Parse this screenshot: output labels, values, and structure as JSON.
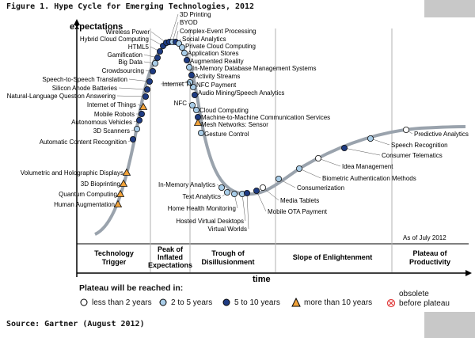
{
  "figure_title": "Figure 1. Hype Cycle for Emerging Technologies, 2012",
  "source": "Source: Gartner (August 2012)",
  "axis": {
    "y_label": "expectations",
    "x_label": "time"
  },
  "as_of": "As of July 2012",
  "phases": [
    "Technology Trigger",
    "Peak of Inflated Expectations",
    "Trough of Disillusionment",
    "Slope of Enlightenment",
    "Plateau of Productivity"
  ],
  "legend": {
    "title": "Plateau will be reached in:",
    "items": [
      {
        "key": "lt2",
        "label": "less than 2 years"
      },
      {
        "key": "2to5",
        "label": "2 to 5 years"
      },
      {
        "key": "5to10",
        "label": "5 to 10 years"
      },
      {
        "key": "gt10",
        "label": "more than 10 years"
      }
    ],
    "obsolete": [
      "obsolete",
      "before plateau"
    ]
  },
  "colors": {
    "curve": "#9aa3ad",
    "lt2": "#ffffff",
    "2to5": "#a9cde8",
    "5to10": "#1e3b82",
    "gt10": "#f2a33a",
    "obsolete": "#e03b3b",
    "grid_line": "#b0b0b0"
  },
  "technologies": [
    {
      "name": "Volumetric and Holographic Displays",
      "category": "gt10"
    },
    {
      "name": "3D Bioprinting",
      "category": "gt10"
    },
    {
      "name": "Quantum Computing",
      "category": "gt10"
    },
    {
      "name": "Human Augmentation",
      "category": "gt10"
    },
    {
      "name": "Automatic Content Recognition",
      "category": "5to10"
    },
    {
      "name": "3D Scanners",
      "category": "2to5"
    },
    {
      "name": "Autonomous Vehicles",
      "category": "5to10"
    },
    {
      "name": "Mobile Robots",
      "category": "5to10"
    },
    {
      "name": "Internet of Things",
      "category": "gt10"
    },
    {
      "name": "Natural-Language Question Answering",
      "category": "5to10"
    },
    {
      "name": "Silicon Anode Batteries",
      "category": "5to10"
    },
    {
      "name": "Speech-to-Speech Translation",
      "category": "5to10"
    },
    {
      "name": "Crowdsourcing",
      "category": "5to10"
    },
    {
      "name": "Big Data",
      "category": "2to5"
    },
    {
      "name": "Gamification",
      "category": "5to10"
    },
    {
      "name": "HTML5",
      "category": "5to10"
    },
    {
      "name": "Hybrid Cloud Computing",
      "category": "5to10"
    },
    {
      "name": "Wireless Power",
      "category": "5to10"
    },
    {
      "name": "3D Printing",
      "category": "5to10"
    },
    {
      "name": "BYOD",
      "category": "2to5"
    },
    {
      "name": "Complex-Event Processing",
      "category": "5to10"
    },
    {
      "name": "Social Analytics",
      "category": "2to5"
    },
    {
      "name": "Private Cloud Computing",
      "category": "2to5"
    },
    {
      "name": "Application Stores",
      "category": "2to5"
    },
    {
      "name": "Augmented Reality",
      "category": "5to10"
    },
    {
      "name": "In-Memory Database Management Systems",
      "category": "2to5"
    },
    {
      "name": "Activity Streams",
      "category": "5to10"
    },
    {
      "name": "Internet TV",
      "category": "2to5"
    },
    {
      "name": "NFC Payment",
      "category": "2to5"
    },
    {
      "name": "Audio Mining/Speech Analytics",
      "category": "5to10"
    },
    {
      "name": "NFC",
      "category": "2to5"
    },
    {
      "name": "Cloud Computing",
      "category": "2to5"
    },
    {
      "name": "Machine-to-Machine Communication Services",
      "category": "5to10"
    },
    {
      "name": "Mesh Networks: Sensor",
      "category": "gt10"
    },
    {
      "name": "Gesture Control",
      "category": "2to5"
    },
    {
      "name": "In-Memory Analytics",
      "category": "2to5"
    },
    {
      "name": "Text Analytics",
      "category": "2to5"
    },
    {
      "name": "Home Health Monitoring",
      "category": "2to5"
    },
    {
      "name": "Hosted Virtual Desktops",
      "category": "2to5"
    },
    {
      "name": "Virtual Worlds",
      "category": "5to10"
    },
    {
      "name": "Mobile OTA Payment",
      "category": "5to10"
    },
    {
      "name": "Media Tablets",
      "category": "lt2"
    },
    {
      "name": "Consumerization",
      "category": "2to5"
    },
    {
      "name": "Biometric Authentication Methods",
      "category": "2to5"
    },
    {
      "name": "Idea Management",
      "category": "lt2"
    },
    {
      "name": "Consumer Telematics",
      "category": "5to10"
    },
    {
      "name": "Speech Recognition",
      "category": "2to5"
    },
    {
      "name": "Predictive Analytics",
      "category": "lt2"
    }
  ]
}
